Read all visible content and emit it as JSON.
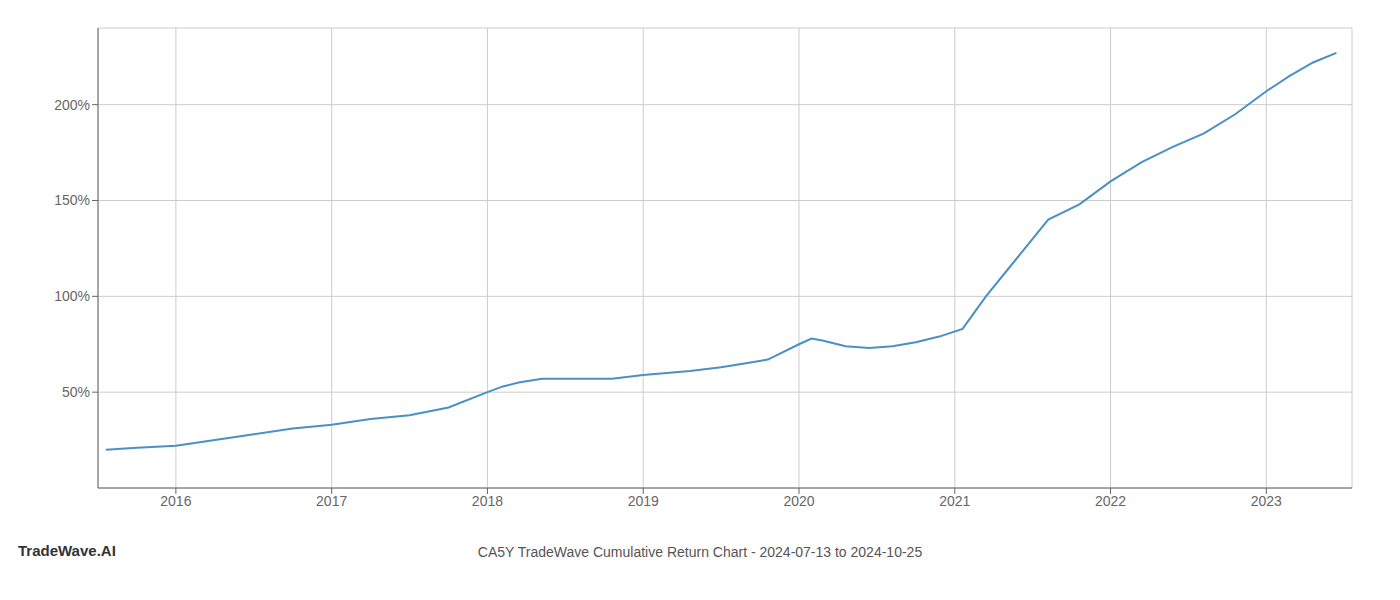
{
  "chart_data": {
    "type": "line",
    "title": "CA5Y TradeWave Cumulative Return Chart - 2024-07-13 to 2024-10-25",
    "annotations": [
      "TradeWave.AI"
    ],
    "x": [
      2015.55,
      2015.75,
      2016.0,
      2016.25,
      2016.5,
      2016.75,
      2017.0,
      2017.25,
      2017.5,
      2017.75,
      2018.0,
      2018.1,
      2018.2,
      2018.35,
      2018.5,
      2018.65,
      2018.8,
      2019.0,
      2019.15,
      2019.3,
      2019.5,
      2019.65,
      2019.8,
      2020.0,
      2020.08,
      2020.15,
      2020.3,
      2020.45,
      2020.6,
      2020.75,
      2020.9,
      2021.05,
      2021.2,
      2021.4,
      2021.6,
      2021.8,
      2022.0,
      2022.2,
      2022.4,
      2022.6,
      2022.8,
      2023.0,
      2023.15,
      2023.3,
      2023.45
    ],
    "values": [
      20,
      21,
      22,
      25,
      28,
      31,
      33,
      36,
      38,
      42,
      50,
      53,
      55,
      57,
      57,
      57,
      57,
      59,
      60,
      61,
      63,
      65,
      67,
      75,
      78,
      77,
      74,
      73,
      74,
      76,
      79,
      83,
      100,
      120,
      140,
      148,
      160,
      170,
      178,
      185,
      195,
      207,
      215,
      222,
      227
    ],
    "color": "#4a90c4",
    "xlim": [
      2015.5,
      2023.55
    ],
    "xticks": [
      2016,
      2017,
      2018,
      2019,
      2020,
      2021,
      2022,
      2023
    ],
    "ylim": [
      0,
      240
    ],
    "yticks": [
      {
        "value": 50,
        "label": "50%"
      },
      {
        "value": 100,
        "label": "100%"
      },
      {
        "value": 150,
        "label": "150%"
      },
      {
        "value": 200,
        "label": "200%"
      }
    ],
    "grid": true
  }
}
